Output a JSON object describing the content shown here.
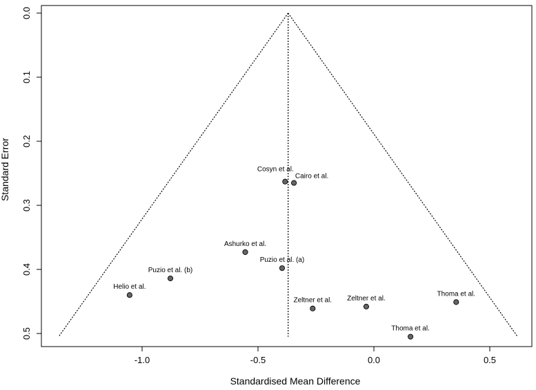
{
  "chart_data": {
    "type": "scatter",
    "title": "",
    "xlabel": "Standardised Mean Difference",
    "ylabel": "Standard Error",
    "xlim": [
      -1.35,
      0.62
    ],
    "ylim": [
      0,
      0.505
    ],
    "y_reversed": true,
    "x_ticks": [
      -1.0,
      -0.5,
      0.0,
      0.5
    ],
    "x_tick_labels": [
      "-1.0",
      "-0.5",
      "0.0",
      "0.5"
    ],
    "y_ticks": [
      0.0,
      0.1,
      0.2,
      0.3,
      0.4,
      0.5
    ],
    "y_tick_labels": [
      "0.0",
      "0.1",
      "0.2",
      "0.3",
      "0.4",
      "0.5"
    ],
    "grid": false,
    "summary_effect": -0.37,
    "funnel": {
      "apex": [
        -0.37,
        0.0
      ],
      "left_base": [
        -1.36,
        0.505
      ],
      "right_base": [
        0.62,
        0.505
      ]
    },
    "points": [
      {
        "label": "Cosyn et al.",
        "x": -0.383,
        "y": 0.263
      },
      {
        "label": "Cairo et al.",
        "x": -0.345,
        "y": 0.265
      },
      {
        "label": "Ashurko et al.",
        "x": -0.555,
        "y": 0.373
      },
      {
        "label": "Puzio et al. (a)",
        "x": -0.396,
        "y": 0.398
      },
      {
        "label": "Puzio et al. (b)",
        "x": -0.878,
        "y": 0.414
      },
      {
        "label": "Helio et al.",
        "x": -1.054,
        "y": 0.44
      },
      {
        "label": "Zeltner et al.",
        "x": -0.264,
        "y": 0.461
      },
      {
        "label": "Zeltner et al.",
        "x": -0.033,
        "y": 0.458
      },
      {
        "label": "Thoma et al.",
        "x": 0.355,
        "y": 0.451
      },
      {
        "label": "Thoma et al.",
        "x": 0.158,
        "y": 0.505
      }
    ],
    "point_color": "#666666"
  }
}
